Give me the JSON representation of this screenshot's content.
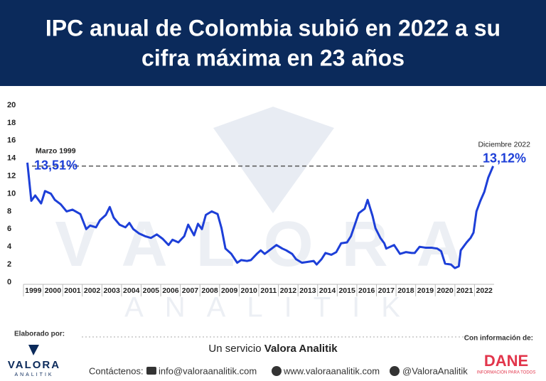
{
  "chart_data": {
    "type": "line",
    "title": "IPC anual de Colombia subió en 2022 a su",
    "title_line2": "cifra máxima en 23 años",
    "categories": [
      "1999",
      "2000",
      "2001",
      "2002",
      "2003",
      "2004",
      "2005",
      "2006",
      "2007",
      "2008",
      "2009",
      "2010",
      "2011",
      "2012",
      "2013",
      "2014",
      "2015",
      "2016",
      "2017",
      "2018",
      "2019",
      "2020",
      "2021",
      "2022"
    ],
    "x": [
      1999.2,
      1999.4,
      1999.6,
      1999.9,
      2000.1,
      2000.4,
      2000.6,
      2000.9,
      2001.2,
      2001.5,
      2001.9,
      2002.2,
      2002.4,
      2002.7,
      2002.9,
      2003.2,
      2003.4,
      2003.6,
      2003.9,
      2004.2,
      2004.4,
      2004.6,
      2004.9,
      2005.2,
      2005.5,
      2005.8,
      2006.1,
      2006.4,
      2006.6,
      2006.9,
      2007.2,
      2007.4,
      2007.7,
      2007.9,
      2008.1,
      2008.3,
      2008.6,
      2008.9,
      2009.1,
      2009.3,
      2009.6,
      2009.9,
      2010.1,
      2010.4,
      2010.6,
      2010.9,
      2011.1,
      2011.3,
      2011.6,
      2011.9,
      2012.2,
      2012.4,
      2012.7,
      2012.9,
      2013.2,
      2013.5,
      2013.8,
      2013.95,
      2014.2,
      2014.4,
      2014.7,
      2014.95,
      2015.2,
      2015.5,
      2015.7,
      2015.9,
      2016.1,
      2016.4,
      2016.55,
      2016.8,
      2016.95,
      2017.2,
      2017.4,
      2017.5,
      2017.9,
      2018.2,
      2018.5,
      2018.8,
      2018.95,
      2019.2,
      2019.5,
      2019.8,
      2020.1,
      2020.3,
      2020.5,
      2020.8,
      2021.0,
      2021.2,
      2021.3,
      2021.6,
      2021.8,
      2021.95,
      2022.1,
      2022.3,
      2022.5,
      2022.7,
      2022.95
    ],
    "series": [
      {
        "name": "IPC anual",
        "color": "#1d3fd8",
        "values": [
          13.51,
          9.2,
          9.8,
          8.9,
          10.3,
          10.0,
          9.3,
          8.8,
          8.0,
          8.2,
          7.7,
          6.0,
          6.4,
          6.2,
          7.0,
          7.6,
          8.5,
          7.3,
          6.5,
          6.2,
          6.7,
          6.0,
          5.5,
          5.2,
          5.0,
          5.4,
          4.9,
          4.2,
          4.8,
          4.5,
          5.2,
          6.5,
          5.3,
          6.6,
          6.0,
          7.6,
          8.0,
          7.7,
          6.1,
          3.8,
          3.2,
          2.2,
          2.5,
          2.4,
          2.5,
          3.2,
          3.6,
          3.2,
          3.7,
          4.2,
          3.8,
          3.6,
          3.2,
          2.6,
          2.2,
          2.3,
          2.4,
          2.0,
          2.6,
          3.3,
          3.1,
          3.4,
          4.4,
          4.5,
          5.2,
          6.5,
          7.8,
          8.3,
          9.3,
          7.5,
          6.1,
          5.0,
          4.4,
          3.8,
          4.2,
          3.2,
          3.4,
          3.3,
          3.3,
          4.0,
          3.9,
          3.9,
          3.8,
          3.5,
          2.1,
          2.0,
          1.6,
          1.8,
          3.6,
          4.5,
          5.0,
          5.6,
          8.0,
          9.2,
          10.2,
          11.8,
          13.12
        ]
      }
    ],
    "xlim": [
      1999,
      2023
    ],
    "ylim": [
      0,
      20
    ],
    "yticks": [
      0,
      2,
      4,
      6,
      8,
      10,
      12,
      14,
      16,
      18,
      20
    ],
    "annotations": [
      {
        "title": "Marzo 1999",
        "label": "13,51%"
      },
      {
        "title": "Diciembre 2022",
        "label": "13,12%"
      }
    ],
    "watermark": [
      "VALORA",
      "ANALITIK"
    ]
  },
  "footer": {
    "made_by": "Elaborado por:",
    "logo": "VALORA",
    "logo_sub": "ANALITIK",
    "service": "Un servicio ",
    "service_bold": "Valora Analitik",
    "source": "Con información de:",
    "dane": "DANE",
    "dane_sub": "INFORMACIÓN PARA TODOS",
    "contact": "Contáctenos:",
    "email": "info@valoraanalitik.com",
    "web": "www.valoraanalitik.com",
    "twitter": "@ValoraAnalitik"
  }
}
